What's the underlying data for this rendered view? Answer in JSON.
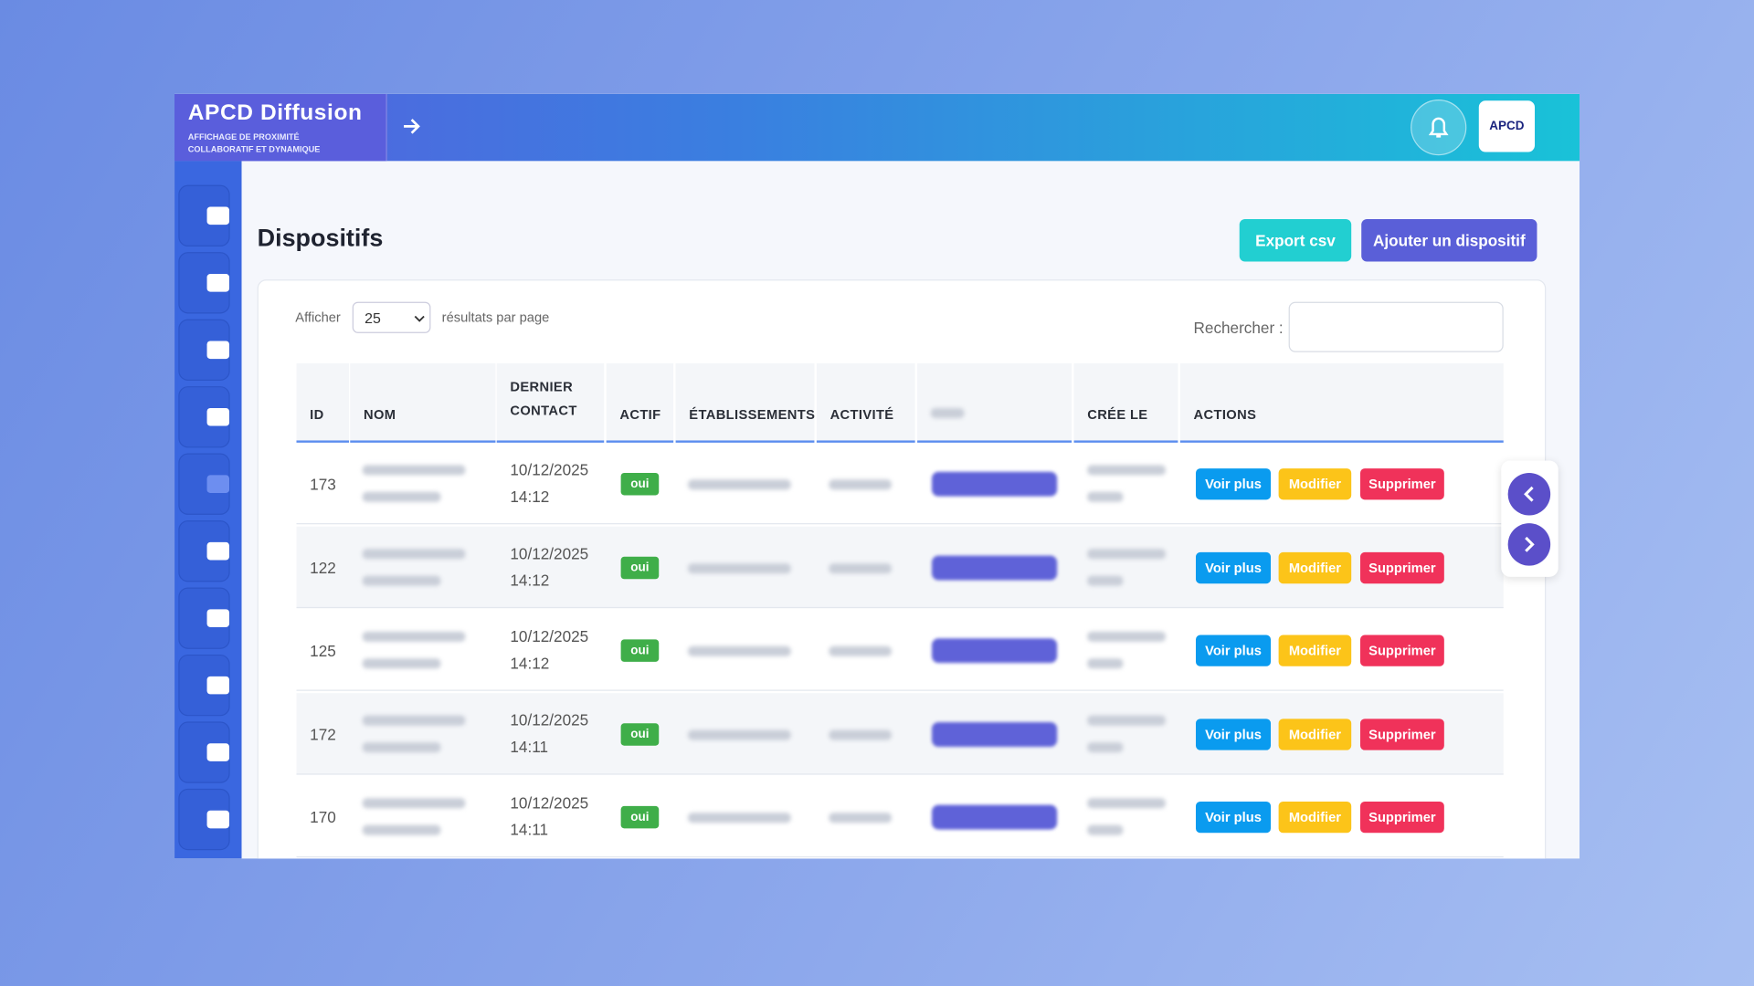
{
  "header": {
    "brand": "APCD Diffusion",
    "tagline_1": "AFFICHAGE DE PROXIMITÉ",
    "tagline_2": "COLLABORATIF ET DYNAMIQUE",
    "logo": "APCD"
  },
  "page": {
    "title": "Dispositifs",
    "buttons": [
      "Export csv",
      "Ajouter un dispositif"
    ]
  },
  "controls": {
    "show_label": "Afficher",
    "page_size": "25",
    "per_page_label": "résultats par page",
    "search_label": "Rechercher :"
  },
  "table": {
    "columns": [
      "ID",
      "NOM",
      "DERNIER CONTACT",
      "ACTIF",
      "ÉTABLISSEMENTS",
      "ACTIVITÉ",
      "CRÉE LE",
      "ACTIONS"
    ],
    "rows": [
      {
        "id": "173",
        "date": "10/12/2025",
        "time": "14:12",
        "actif": "oui"
      },
      {
        "id": "122",
        "date": "10/12/2025",
        "time": "14:12",
        "actif": "oui"
      },
      {
        "id": "125",
        "date": "10/12/2025",
        "time": "14:12",
        "actif": "oui"
      },
      {
        "id": "172",
        "date": "10/12/2025",
        "time": "14:11",
        "actif": "oui"
      },
      {
        "id": "170",
        "date": "10/12/2025",
        "time": "14:11",
        "actif": "oui"
      }
    ],
    "actions": [
      "Voir plus",
      "Modifier",
      "Supprimer"
    ]
  }
}
